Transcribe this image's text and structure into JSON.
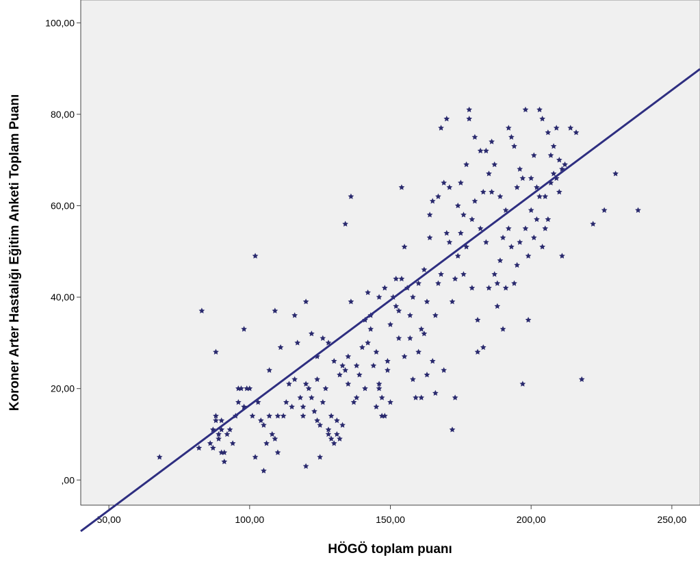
{
  "chart_data": {
    "type": "scatter",
    "title": "",
    "xlabel": "HÖGÖ toplam puanı",
    "ylabel": "Koroner Arter Hastalığı Eğitim Anketi Toplam Puanı",
    "xlim": [
      40,
      260
    ],
    "ylim": [
      -5.5,
      105
    ],
    "x_ticks": [
      50,
      100,
      150,
      200,
      250
    ],
    "x_tick_labels": [
      "50,00",
      "100,00",
      "150,00",
      "200,00",
      "250,00"
    ],
    "y_ticks": [
      0,
      20,
      40,
      60,
      80,
      100
    ],
    "y_tick_labels": [
      ",00",
      "20,00",
      "40,00",
      "60,00",
      "80,00",
      "100,00"
    ],
    "grid": false,
    "legend": "none",
    "colors": {
      "points": "#2a2a6e",
      "fit_line": "#2e2e80",
      "plot_background": "#f0f0f0"
    },
    "fit_line": {
      "x1": 40,
      "y1": -11.2,
      "x2": 260,
      "y2": 89.9
    },
    "points": [
      [
        68,
        5
      ],
      [
        82,
        7
      ],
      [
        83,
        37
      ],
      [
        86,
        8
      ],
      [
        87,
        7
      ],
      [
        87,
        11
      ],
      [
        88,
        13
      ],
      [
        88,
        14
      ],
      [
        88,
        28
      ],
      [
        89,
        10
      ],
      [
        89,
        9
      ],
      [
        90,
        6
      ],
      [
        90,
        11
      ],
      [
        90,
        13
      ],
      [
        91,
        4
      ],
      [
        91,
        6
      ],
      [
        92,
        10
      ],
      [
        93,
        11
      ],
      [
        94,
        8
      ],
      [
        95,
        14
      ],
      [
        96,
        17
      ],
      [
        96,
        20
      ],
      [
        97,
        20
      ],
      [
        98,
        33
      ],
      [
        98,
        16
      ],
      [
        99,
        20
      ],
      [
        100,
        20
      ],
      [
        101,
        14
      ],
      [
        102,
        5
      ],
      [
        102,
        49
      ],
      [
        103,
        17
      ],
      [
        104,
        13
      ],
      [
        105,
        2
      ],
      [
        105,
        12
      ],
      [
        106,
        8
      ],
      [
        107,
        14
      ],
      [
        107,
        24
      ],
      [
        108,
        10
      ],
      [
        109,
        37
      ],
      [
        109,
        9
      ],
      [
        110,
        6
      ],
      [
        110,
        14
      ],
      [
        111,
        29
      ],
      [
        112,
        14
      ],
      [
        113,
        17
      ],
      [
        114,
        21
      ],
      [
        115,
        16
      ],
      [
        116,
        36
      ],
      [
        116,
        22
      ],
      [
        117,
        30
      ],
      [
        118,
        18
      ],
      [
        119,
        16
      ],
      [
        119,
        14
      ],
      [
        120,
        39
      ],
      [
        120,
        3
      ],
      [
        120,
        21
      ],
      [
        121,
        20
      ],
      [
        122,
        18
      ],
      [
        122,
        32
      ],
      [
        123,
        15
      ],
      [
        124,
        13
      ],
      [
        124,
        22
      ],
      [
        124,
        27
      ],
      [
        125,
        12
      ],
      [
        125,
        5
      ],
      [
        126,
        31
      ],
      [
        126,
        17
      ],
      [
        127,
        20
      ],
      [
        128,
        10
      ],
      [
        128,
        11
      ],
      [
        128,
        30
      ],
      [
        129,
        9
      ],
      [
        129,
        14
      ],
      [
        130,
        26
      ],
      [
        130,
        8
      ],
      [
        131,
        10
      ],
      [
        131,
        13
      ],
      [
        132,
        23
      ],
      [
        132,
        9
      ],
      [
        133,
        12
      ],
      [
        133,
        25
      ],
      [
        134,
        56
      ],
      [
        134,
        24
      ],
      [
        135,
        27
      ],
      [
        135,
        21
      ],
      [
        136,
        39
      ],
      [
        136,
        62
      ],
      [
        137,
        17
      ],
      [
        138,
        25
      ],
      [
        138,
        18
      ],
      [
        139,
        23
      ],
      [
        140,
        29
      ],
      [
        141,
        20
      ],
      [
        141,
        35
      ],
      [
        142,
        41
      ],
      [
        142,
        30
      ],
      [
        143,
        36
      ],
      [
        143,
        33
      ],
      [
        144,
        25
      ],
      [
        145,
        28
      ],
      [
        145,
        16
      ],
      [
        146,
        21
      ],
      [
        146,
        20
      ],
      [
        146,
        40
      ],
      [
        147,
        18
      ],
      [
        147,
        14
      ],
      [
        148,
        14
      ],
      [
        148,
        42
      ],
      [
        149,
        24
      ],
      [
        149,
        26
      ],
      [
        150,
        34
      ],
      [
        150,
        17
      ],
      [
        151,
        40
      ],
      [
        152,
        44
      ],
      [
        152,
        38
      ],
      [
        153,
        37
      ],
      [
        153,
        31
      ],
      [
        154,
        44
      ],
      [
        154,
        64
      ],
      [
        155,
        51
      ],
      [
        155,
        27
      ],
      [
        156,
        42
      ],
      [
        157,
        36
      ],
      [
        157,
        31
      ],
      [
        158,
        40
      ],
      [
        158,
        22
      ],
      [
        159,
        18
      ],
      [
        160,
        28
      ],
      [
        160,
        43
      ],
      [
        161,
        33
      ],
      [
        161,
        18
      ],
      [
        162,
        32
      ],
      [
        162,
        46
      ],
      [
        163,
        23
      ],
      [
        163,
        39
      ],
      [
        164,
        53
      ],
      [
        164,
        58
      ],
      [
        165,
        61
      ],
      [
        165,
        26
      ],
      [
        166,
        19
      ],
      [
        166,
        36
      ],
      [
        167,
        43
      ],
      [
        167,
        62
      ],
      [
        168,
        77
      ],
      [
        168,
        45
      ],
      [
        169,
        65
      ],
      [
        169,
        24
      ],
      [
        170,
        54
      ],
      [
        170,
        79
      ],
      [
        171,
        52
      ],
      [
        171,
        64
      ],
      [
        172,
        39
      ],
      [
        172,
        11
      ],
      [
        173,
        18
      ],
      [
        173,
        44
      ],
      [
        174,
        60
      ],
      [
        174,
        49
      ],
      [
        175,
        54
      ],
      [
        175,
        65
      ],
      [
        176,
        58
      ],
      [
        176,
        45
      ],
      [
        177,
        51
      ],
      [
        177,
        69
      ],
      [
        178,
        81
      ],
      [
        178,
        79
      ],
      [
        179,
        57
      ],
      [
        179,
        42
      ],
      [
        180,
        75
      ],
      [
        180,
        61
      ],
      [
        181,
        28
      ],
      [
        181,
        35
      ],
      [
        182,
        72
      ],
      [
        182,
        55
      ],
      [
        183,
        63
      ],
      [
        183,
        29
      ],
      [
        184,
        72
      ],
      [
        184,
        52
      ],
      [
        185,
        67
      ],
      [
        185,
        42
      ],
      [
        186,
        63
      ],
      [
        186,
        74
      ],
      [
        187,
        45
      ],
      [
        187,
        69
      ],
      [
        188,
        43
      ],
      [
        188,
        38
      ],
      [
        189,
        48
      ],
      [
        189,
        62
      ],
      [
        190,
        53
      ],
      [
        190,
        33
      ],
      [
        191,
        42
      ],
      [
        191,
        59
      ],
      [
        192,
        55
      ],
      [
        192,
        77
      ],
      [
        193,
        51
      ],
      [
        193,
        75
      ],
      [
        194,
        43
      ],
      [
        194,
        73
      ],
      [
        195,
        47
      ],
      [
        195,
        64
      ],
      [
        196,
        52
      ],
      [
        196,
        68
      ],
      [
        197,
        21
      ],
      [
        197,
        66
      ],
      [
        198,
        55
      ],
      [
        198,
        81
      ],
      [
        199,
        49
      ],
      [
        199,
        35
      ],
      [
        200,
        59
      ],
      [
        200,
        66
      ],
      [
        201,
        71
      ],
      [
        201,
        53
      ],
      [
        202,
        57
      ],
      [
        202,
        64
      ],
      [
        203,
        62
      ],
      [
        203,
        81
      ],
      [
        204,
        51
      ],
      [
        204,
        79
      ],
      [
        205,
        55
      ],
      [
        205,
        62
      ],
      [
        206,
        76
      ],
      [
        206,
        57
      ],
      [
        207,
        71
      ],
      [
        207,
        65
      ],
      [
        208,
        73
      ],
      [
        208,
        67
      ],
      [
        209,
        77
      ],
      [
        209,
        66
      ],
      [
        210,
        70
      ],
      [
        210,
        63
      ],
      [
        211,
        68
      ],
      [
        211,
        49
      ],
      [
        212,
        69
      ],
      [
        214,
        77
      ],
      [
        216,
        76
      ],
      [
        218,
        22
      ],
      [
        222,
        56
      ],
      [
        226,
        59
      ],
      [
        230,
        67
      ],
      [
        238,
        59
      ]
    ]
  }
}
